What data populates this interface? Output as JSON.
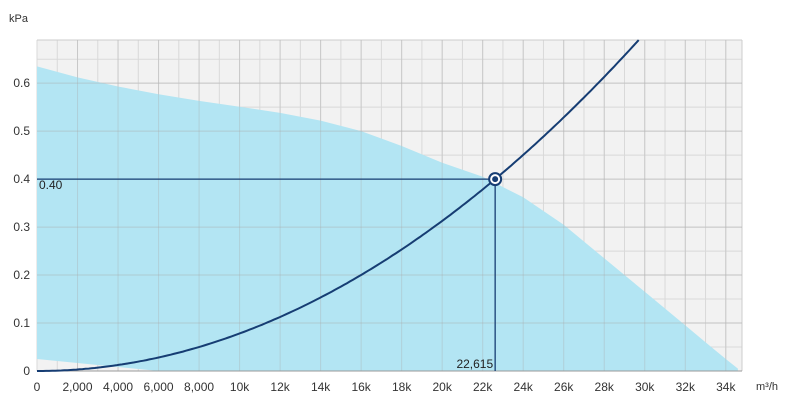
{
  "chart_data": {
    "type": "line",
    "ylabel": "kPa",
    "xlabel": "m³/h",
    "xlim": [
      0,
      34800
    ],
    "ylim": [
      0,
      0.69
    ],
    "grid": true,
    "x_minor_step": 1000,
    "y_minor_step": 0.05,
    "x_ticks": [
      {
        "value": 0,
        "label": "0"
      },
      {
        "value": 2000,
        "label": "2,000"
      },
      {
        "value": 4000,
        "label": "4,000"
      },
      {
        "value": 6000,
        "label": "6,000"
      },
      {
        "value": 8000,
        "label": "8,000"
      },
      {
        "value": 10000,
        "label": "10k"
      },
      {
        "value": 12000,
        "label": "12k"
      },
      {
        "value": 14000,
        "label": "14k"
      },
      {
        "value": 16000,
        "label": "16k"
      },
      {
        "value": 18000,
        "label": "18k"
      },
      {
        "value": 20000,
        "label": "20k"
      },
      {
        "value": 22000,
        "label": "22k"
      },
      {
        "value": 24000,
        "label": "24k"
      },
      {
        "value": 26000,
        "label": "26k"
      },
      {
        "value": 28000,
        "label": "28k"
      },
      {
        "value": 30000,
        "label": "30k"
      },
      {
        "value": 32000,
        "label": "32k"
      },
      {
        "value": 34000,
        "label": "34k"
      }
    ],
    "y_ticks": [
      {
        "value": 0,
        "label": "0"
      },
      {
        "value": 0.1,
        "label": "0.1"
      },
      {
        "value": 0.2,
        "label": "0.2"
      },
      {
        "value": 0.3,
        "label": "0.3"
      },
      {
        "value": 0.4,
        "label": "0.4"
      },
      {
        "value": 0.5,
        "label": "0.5"
      },
      {
        "value": 0.6,
        "label": "0.6"
      }
    ],
    "series": [
      {
        "kind": "area",
        "color": "#b3e5f3",
        "upper": [
          [
            0,
            0.635
          ],
          [
            2000,
            0.612
          ],
          [
            4000,
            0.593
          ],
          [
            6000,
            0.577
          ],
          [
            8000,
            0.563
          ],
          [
            10000,
            0.551
          ],
          [
            12000,
            0.538
          ],
          [
            14000,
            0.522
          ],
          [
            16000,
            0.5
          ],
          [
            18000,
            0.469
          ],
          [
            20000,
            0.434
          ],
          [
            22000,
            0.405
          ],
          [
            24000,
            0.362
          ],
          [
            26000,
            0.305
          ],
          [
            28000,
            0.235
          ],
          [
            30000,
            0.165
          ],
          [
            32000,
            0.095
          ],
          [
            33000,
            0.06
          ],
          [
            34000,
            0.025
          ],
          [
            34600,
            0.005
          ]
        ],
        "lower": [
          [
            0,
            0.025
          ],
          [
            6000,
            0.0
          ],
          [
            34600,
            0.0
          ]
        ]
      },
      {
        "kind": "line",
        "color": "#163d73",
        "equation": "y = 0.40 * (x / 22615)^2",
        "x_range": [
          0,
          29700
        ]
      }
    ],
    "operating_point": {
      "x": 22615,
      "y": 0.4,
      "x_label": "22,615",
      "y_label": "0.40",
      "color": "#163d73"
    }
  }
}
